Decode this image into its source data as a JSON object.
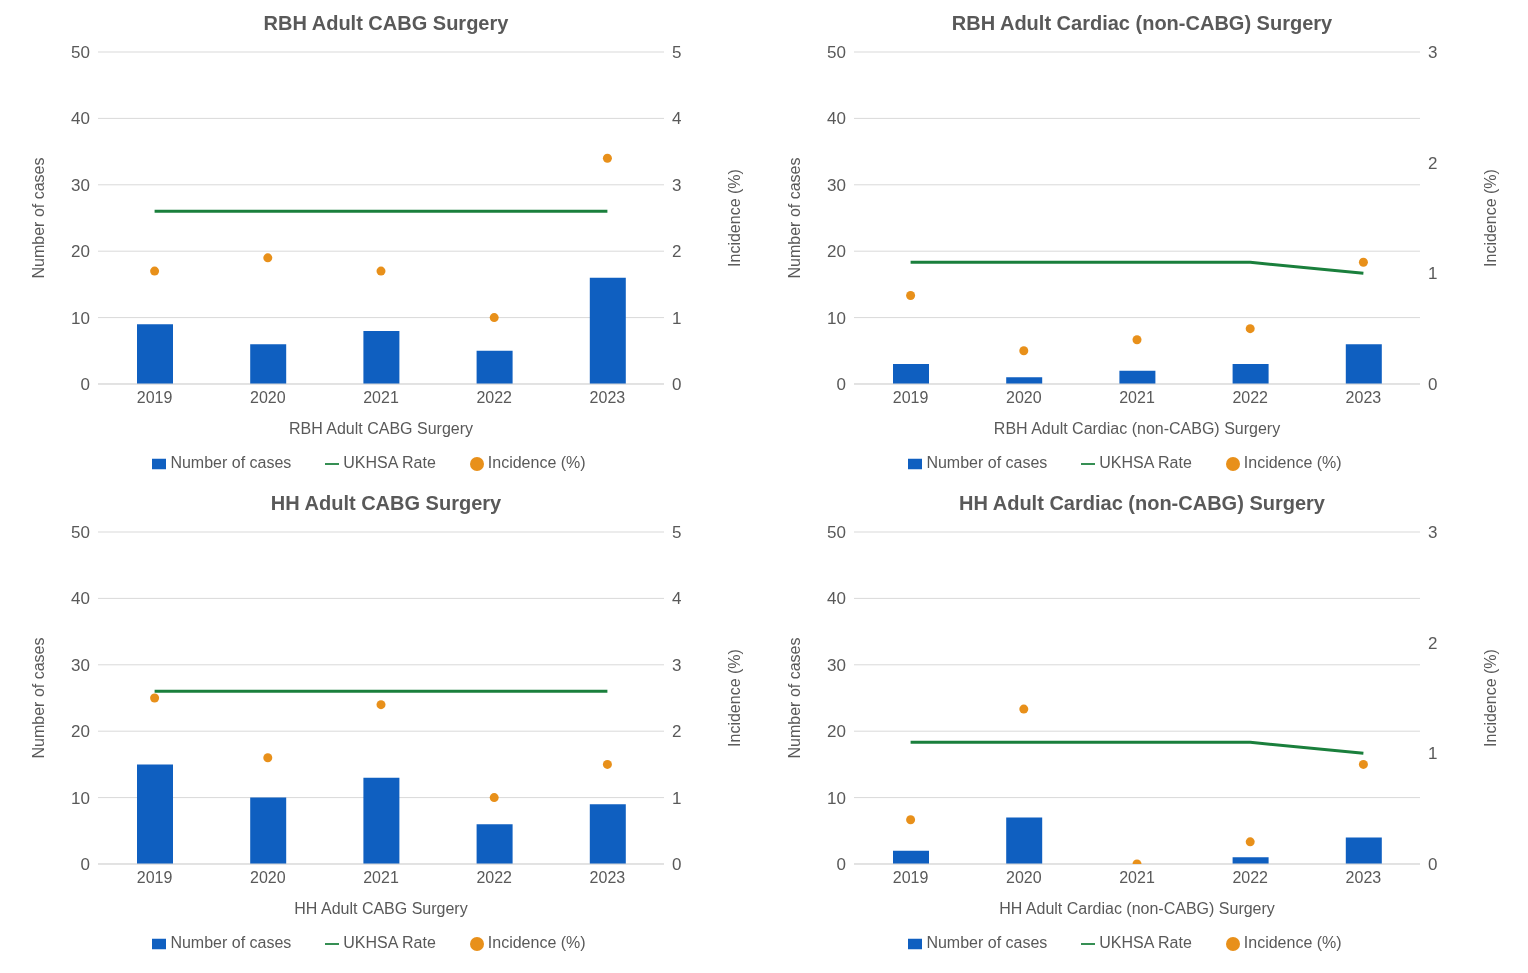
{
  "chart_data": [
    {
      "type": "bar",
      "title": "RBH Adult CABG Surgery",
      "xlabel": "RBH Adult CABG Surgery",
      "ylabel": "Number of cases",
      "y2label": "Incidence (%)",
      "categories": [
        "2019",
        "2020",
        "2021",
        "2022",
        "2023"
      ],
      "ylim": [
        0,
        50
      ],
      "yticks": [
        0,
        10,
        20,
        30,
        40,
        50
      ],
      "y2lim": [
        0,
        5
      ],
      "y2ticks": [
        0,
        1,
        2,
        3,
        4,
        5
      ],
      "grid": "y",
      "legend": "bottom",
      "series": [
        {
          "name": "Number of cases",
          "color": "#0f5fc0",
          "values": [
            9,
            6,
            8,
            5,
            16
          ]
        },
        {
          "name": "UKHSA Rate",
          "type": "line",
          "axis": "y2",
          "color": "#1a7f3c",
          "values": [
            2.6,
            2.6,
            2.6,
            2.6,
            2.6
          ]
        },
        {
          "name": "Incidence (%)",
          "type": "scatter",
          "axis": "y2",
          "color": "#e8901a",
          "values": [
            1.7,
            1.9,
            1.7,
            1.0,
            3.4
          ]
        }
      ]
    },
    {
      "type": "bar",
      "title": "RBH Adult Cardiac (non-CABG) Surgery",
      "xlabel": "RBH Adult Cardiac (non-CABG) Surgery",
      "ylabel": "Number of cases",
      "y2label": "Incidence (%)",
      "categories": [
        "2019",
        "2020",
        "2021",
        "2022",
        "2023"
      ],
      "ylim": [
        0,
        50
      ],
      "yticks": [
        0,
        10,
        20,
        30,
        40,
        50
      ],
      "y2lim": [
        0,
        3
      ],
      "y2ticks": [
        0,
        1,
        2,
        3
      ],
      "grid": "y",
      "legend": "bottom",
      "series": [
        {
          "name": "Number of cases",
          "color": "#0f5fc0",
          "values": [
            3,
            1,
            2,
            3,
            6
          ]
        },
        {
          "name": "UKHSA Rate",
          "type": "line",
          "axis": "y2",
          "color": "#1a7f3c",
          "values": [
            1.1,
            1.1,
            1.1,
            1.1,
            1.0
          ]
        },
        {
          "name": "Incidence (%)",
          "type": "scatter",
          "axis": "y2",
          "color": "#e8901a",
          "values": [
            0.8,
            0.3,
            0.4,
            0.5,
            1.1
          ]
        }
      ]
    },
    {
      "type": "bar",
      "title": "HH Adult CABG Surgery",
      "xlabel": "HH Adult CABG Surgery",
      "ylabel": "Number of cases",
      "y2label": "Incidence (%)",
      "categories": [
        "2019",
        "2020",
        "2021",
        "2022",
        "2023"
      ],
      "ylim": [
        0,
        50
      ],
      "yticks": [
        0,
        10,
        20,
        30,
        40,
        50
      ],
      "y2lim": [
        0,
        5
      ],
      "y2ticks": [
        0,
        1,
        2,
        3,
        4,
        5
      ],
      "grid": "y",
      "legend": "bottom",
      "series": [
        {
          "name": "Number of cases",
          "color": "#0f5fc0",
          "values": [
            15,
            10,
            13,
            6,
            9
          ]
        },
        {
          "name": "UKHSA Rate",
          "type": "line",
          "axis": "y2",
          "color": "#1a7f3c",
          "values": [
            2.6,
            2.6,
            2.6,
            2.6,
            2.6
          ]
        },
        {
          "name": "Incidence (%)",
          "type": "scatter",
          "axis": "y2",
          "color": "#e8901a",
          "values": [
            2.5,
            1.6,
            2.4,
            1.0,
            1.5
          ]
        }
      ]
    },
    {
      "type": "bar",
      "title": "HH Adult Cardiac (non-CABG) Surgery",
      "xlabel": "HH Adult Cardiac (non-CABG) Surgery",
      "ylabel": "Number of cases",
      "y2label": "Incidence (%)",
      "categories": [
        "2019",
        "2020",
        "2021",
        "2022",
        "2023"
      ],
      "ylim": [
        0,
        50
      ],
      "yticks": [
        0,
        10,
        20,
        30,
        40,
        50
      ],
      "y2lim": [
        0,
        3
      ],
      "y2ticks": [
        0,
        1,
        2,
        3
      ],
      "grid": "y",
      "legend": "bottom",
      "series": [
        {
          "name": "Number of cases",
          "color": "#0f5fc0",
          "values": [
            2,
            7,
            0,
            1,
            4
          ]
        },
        {
          "name": "UKHSA Rate",
          "type": "line",
          "axis": "y2",
          "color": "#1a7f3c",
          "values": [
            1.1,
            1.1,
            1.1,
            1.1,
            1.0
          ]
        },
        {
          "name": "Incidence (%)",
          "type": "scatter",
          "axis": "y2",
          "color": "#e8901a",
          "values": [
            0.4,
            1.4,
            0,
            0.2,
            0.9
          ]
        }
      ]
    }
  ]
}
